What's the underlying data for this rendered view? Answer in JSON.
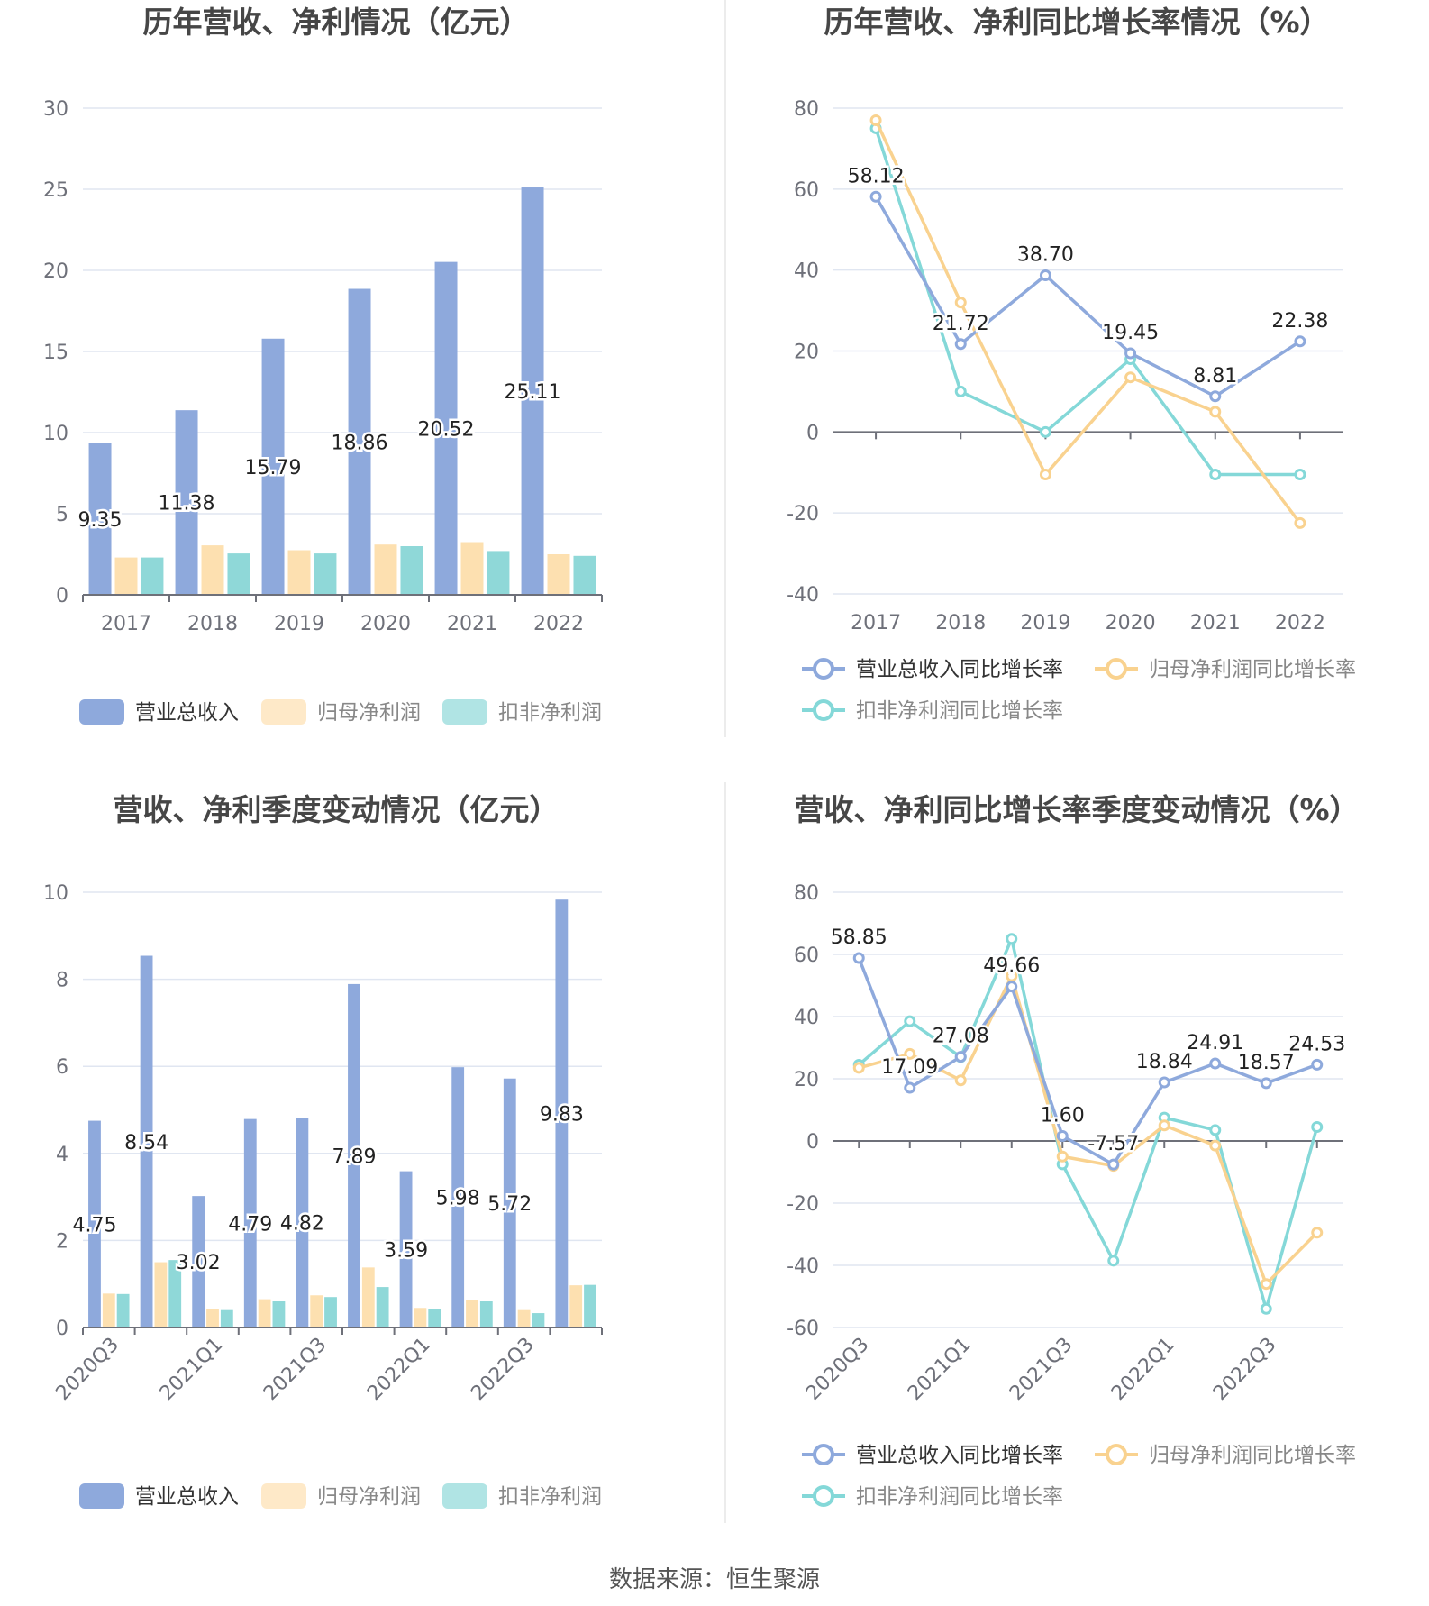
{
  "source": "数据来源：恒生聚源",
  "colors": {
    "revenue": "#8ea9dc",
    "netprofit": "#fde0b0",
    "deducted": "#8fd8d8",
    "revenue_line": "#8ea9dc",
    "netprofit_line": "#f9d28f",
    "deducted_line": "#84d8d8"
  },
  "chart_data": [
    {
      "type": "bar",
      "title": "历年营收、净利情况（亿元）",
      "categories": [
        "2017",
        "2018",
        "2019",
        "2020",
        "2021",
        "2022"
      ],
      "ylim": [
        0,
        30
      ],
      "yticks": [
        0,
        5,
        10,
        15,
        20,
        25,
        30
      ],
      "series": [
        {
          "name": "营业总收入",
          "values": [
            9.35,
            11.38,
            15.79,
            18.86,
            20.52,
            25.11
          ],
          "labels": [
            "9.35",
            "11.38",
            "15.79",
            "18.86",
            "20.52",
            "25.11"
          ]
        },
        {
          "name": "归母净利润",
          "values": [
            2.3,
            3.05,
            2.75,
            3.1,
            3.25,
            2.5
          ]
        },
        {
          "name": "扣非净利润",
          "values": [
            2.3,
            2.55,
            2.55,
            3.0,
            2.7,
            2.4
          ]
        }
      ],
      "legend": "bottom"
    },
    {
      "type": "line",
      "title": "历年营收、净利同比增长率情况（%）",
      "categories": [
        "2017",
        "2018",
        "2019",
        "2020",
        "2021",
        "2022"
      ],
      "ylim": [
        -40,
        80
      ],
      "yticks": [
        -40,
        -20,
        0,
        20,
        40,
        60,
        80
      ],
      "series": [
        {
          "name": "营业总收入同比增长率",
          "values": [
            58.12,
            21.72,
            38.7,
            19.45,
            8.81,
            22.38
          ],
          "labels": [
            "58.12",
            "21.72",
            "38.70",
            "19.45",
            "8.81",
            "22.38"
          ]
        },
        {
          "name": "归母净利润同比增长率",
          "values": [
            77,
            32,
            -10.5,
            13.5,
            5,
            -22.5
          ]
        },
        {
          "name": "扣非净利润同比增长率",
          "values": [
            75,
            10,
            0,
            18,
            -10.5,
            -10.5
          ]
        }
      ],
      "legend": "bottom"
    },
    {
      "type": "bar",
      "title": "营收、净利季度变动情况（亿元）",
      "categories": [
        "2020Q3",
        "2020Q4",
        "2021Q1",
        "2021Q2",
        "2021Q3",
        "2021Q4",
        "2022Q1",
        "2022Q2",
        "2022Q3",
        "2022Q4"
      ],
      "tick_labels": [
        "2020Q3",
        "",
        "2021Q1",
        "",
        "2021Q3",
        "",
        "2022Q1",
        "",
        "2022Q3",
        ""
      ],
      "ylim": [
        0,
        10
      ],
      "yticks": [
        0,
        2,
        4,
        6,
        8,
        10
      ],
      "series": [
        {
          "name": "营业总收入",
          "values": [
            4.75,
            8.54,
            3.02,
            4.79,
            4.82,
            7.89,
            3.59,
            5.98,
            5.72,
            9.83
          ],
          "labels": [
            "4.75",
            "8.54",
            "3.02",
            "4.79",
            "4.82",
            "7.89",
            "3.59",
            "5.98",
            "5.72",
            "9.83"
          ]
        },
        {
          "name": "归母净利润",
          "values": [
            0.78,
            1.5,
            0.42,
            0.65,
            0.74,
            1.38,
            0.45,
            0.64,
            0.4,
            0.97
          ]
        },
        {
          "name": "扣非净利润",
          "values": [
            0.77,
            1.55,
            0.4,
            0.6,
            0.7,
            0.93,
            0.42,
            0.6,
            0.33,
            0.98
          ]
        }
      ],
      "legend": "bottom"
    },
    {
      "type": "line",
      "title": "营收、净利同比增长率季度变动情况（%）",
      "categories": [
        "2020Q3",
        "2020Q4",
        "2021Q1",
        "2021Q2",
        "2021Q3",
        "2021Q4",
        "2022Q1",
        "2022Q2",
        "2022Q3",
        "2022Q4"
      ],
      "tick_labels": [
        "2020Q3",
        "",
        "2021Q1",
        "",
        "2021Q3",
        "",
        "2022Q1",
        "",
        "2022Q3",
        ""
      ],
      "ylim": [
        -60,
        80
      ],
      "yticks": [
        -60,
        -40,
        -20,
        0,
        20,
        40,
        60,
        80
      ],
      "series": [
        {
          "name": "营业总收入同比增长率",
          "values": [
            58.85,
            17.09,
            27.08,
            49.66,
            1.6,
            -7.57,
            18.84,
            24.91,
            18.57,
            24.53
          ],
          "labels": [
            "58.85",
            "17.09",
            "27.08",
            "49.66",
            "1.60",
            "-7.57",
            "18.84",
            "24.91",
            "18.57",
            "24.53"
          ]
        },
        {
          "name": "归母净利润同比增长率",
          "values": [
            23.5,
            28,
            19.5,
            53,
            -5,
            -8,
            5,
            -1.5,
            -46,
            -29.5
          ]
        },
        {
          "name": "扣非净利润同比增长率",
          "values": [
            24.5,
            38.5,
            27,
            65,
            -7.5,
            -38.5,
            7.5,
            3.5,
            -54,
            4.5
          ]
        }
      ],
      "legend": "bottom"
    }
  ]
}
